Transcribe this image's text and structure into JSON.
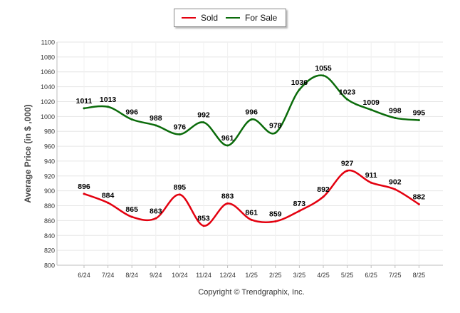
{
  "chart_data": {
    "type": "line",
    "categories": [
      "6/24",
      "7/24",
      "8/24",
      "9/24",
      "10/24",
      "11/24",
      "12/24",
      "1/25",
      "2/25",
      "3/25",
      "4/25",
      "5/25",
      "6/25",
      "7/25",
      "8/25"
    ],
    "series": [
      {
        "name": "Sold",
        "color": "#e3000f",
        "values": [
          896,
          884,
          865,
          863,
          895,
          853,
          883,
          861,
          859,
          873,
          892,
          927,
          911,
          902,
          882
        ]
      },
      {
        "name": "For Sale",
        "color": "#0a6b0a",
        "values": [
          1011,
          1013,
          996,
          988,
          976,
          992,
          961,
          996,
          978,
          1036,
          1055,
          1023,
          1009,
          998,
          995
        ]
      }
    ],
    "ylabel": "Average Price (in $ ,000)",
    "xlabel": "",
    "ylim": [
      800,
      1100
    ],
    "yticks": [
      800,
      820,
      840,
      860,
      880,
      900,
      920,
      940,
      960,
      980,
      1000,
      1020,
      1040,
      1060,
      1080,
      1100
    ],
    "grid": true,
    "legend_position": "top-center"
  },
  "footer": {
    "copyright": "Copyright © Trendgraphix, Inc."
  }
}
